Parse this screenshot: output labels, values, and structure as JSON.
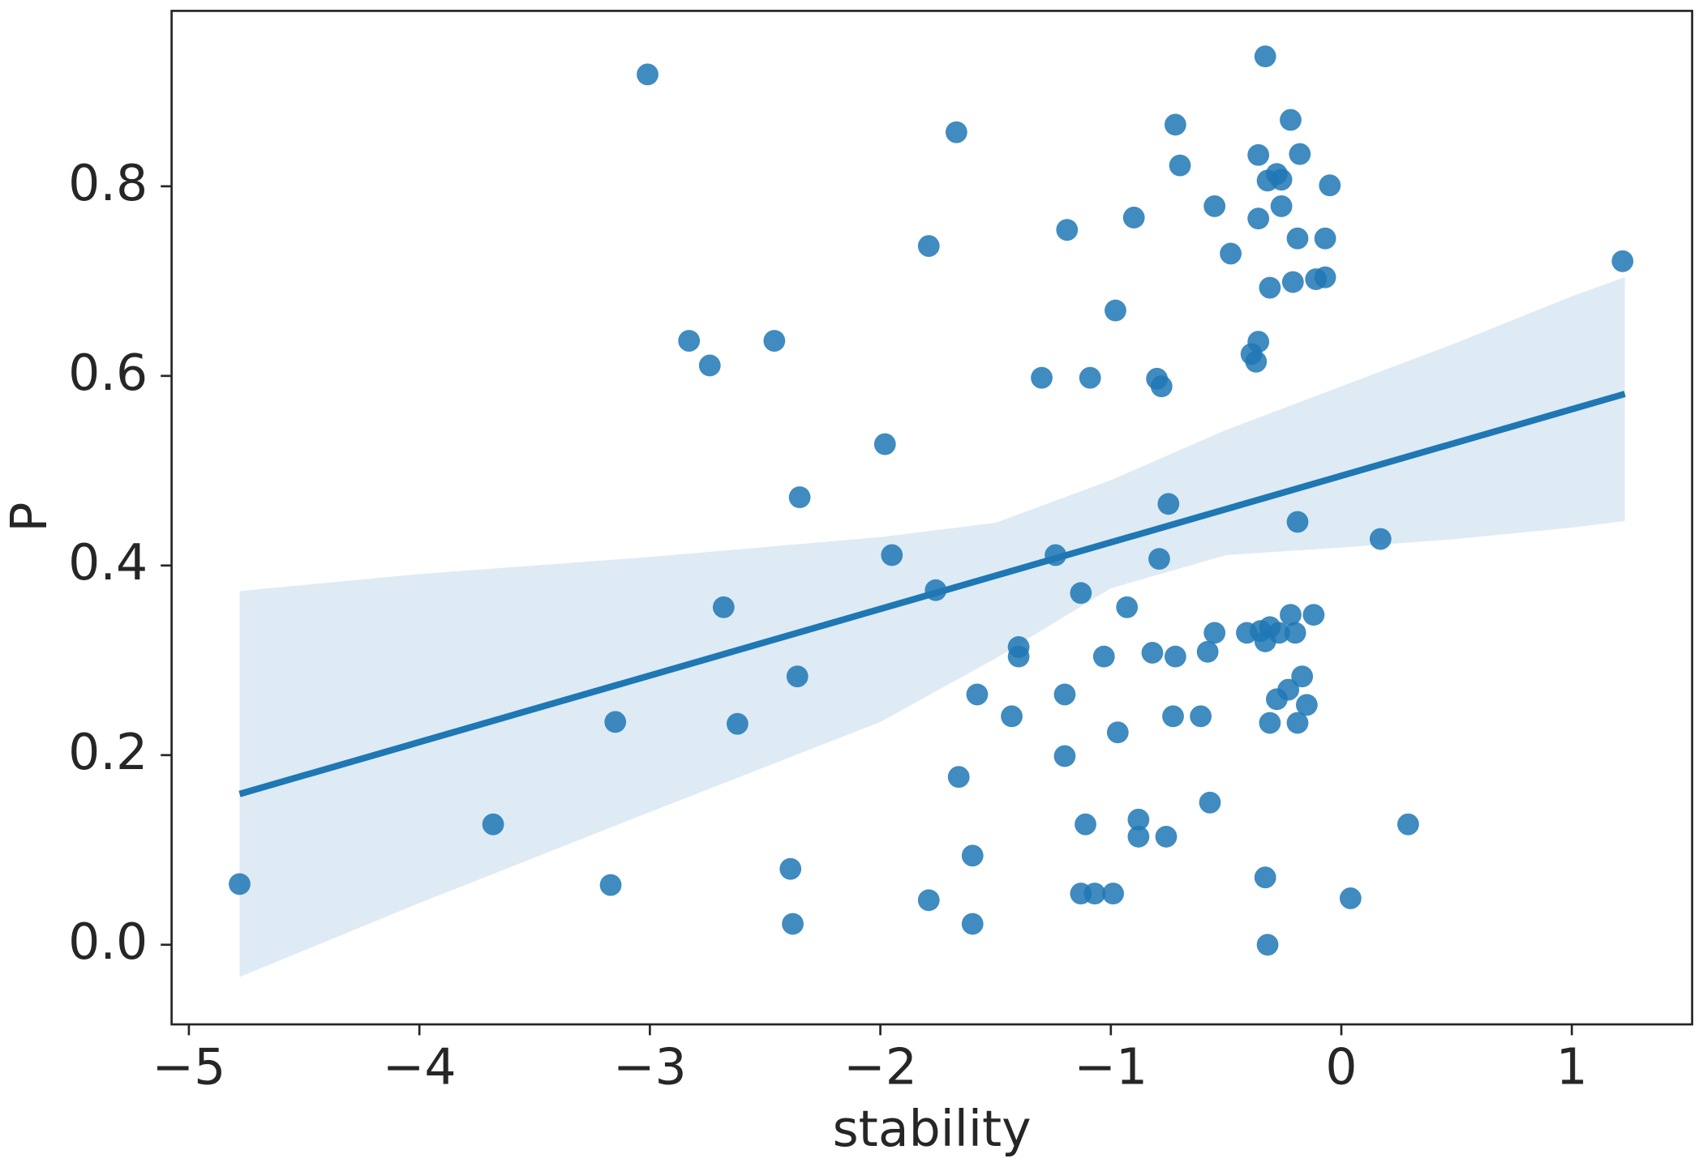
{
  "chart_data": {
    "type": "scatter",
    "x_label": "stability",
    "y_label": "P",
    "xlim": [
      -5.075,
      1.522
    ],
    "ylim": [
      -0.084,
      0.985
    ],
    "xticks": [
      {
        "value": -5,
        "label": "−5"
      },
      {
        "value": -4,
        "label": "−4"
      },
      {
        "value": -3,
        "label": "−3"
      },
      {
        "value": -2,
        "label": "−2"
      },
      {
        "value": -1,
        "label": "−1"
      },
      0,
      1
    ],
    "yticks": [
      {
        "value": 0,
        "label": "0.0"
      },
      {
        "value": 0.2,
        "label": "0.2"
      },
      {
        "value": 0.4,
        "label": "0.4"
      },
      {
        "value": 0.6,
        "label": "0.6"
      },
      {
        "value": 0.8,
        "label": "0.8"
      }
    ],
    "grid": false,
    "color": "#1f77b4",
    "x": [
      -4.78,
      -3.68,
      -3.17,
      -3.15,
      -3.01,
      -2.83,
      -2.74,
      -2.68,
      -2.62,
      -2.46,
      -2.38,
      -2.39,
      -2.36,
      -2.35,
      -1.98,
      -1.95,
      -1.79,
      -1.79,
      -1.76,
      -1.67,
      -1.66,
      -1.6,
      -1.6,
      -1.58,
      -1.43,
      -1.4,
      -1.4,
      -1.3,
      -1.24,
      -1.2,
      -1.2,
      -1.19,
      -1.13,
      -1.13,
      -1.11,
      -1.09,
      -1.07,
      -1.03,
      -0.99,
      -0.98,
      -0.97,
      -0.93,
      -0.9,
      -0.88,
      -0.88,
      -0.82,
      -0.8,
      -0.79,
      -0.78,
      -0.76,
      -0.75,
      -0.73,
      -0.72,
      -0.72,
      -0.7,
      -0.61,
      -0.58,
      -0.57,
      -0.55,
      -0.55,
      -0.48,
      -0.41,
      -0.39,
      -0.37,
      -0.36,
      -0.36,
      -0.36,
      -0.35,
      -0.33,
      -0.33,
      -0.33,
      -0.32,
      -0.32,
      -0.31,
      -0.31,
      -0.31,
      -0.28,
      -0.28,
      -0.27,
      -0.26,
      -0.26,
      -0.23,
      -0.22,
      -0.22,
      -0.21,
      -0.2,
      -0.19,
      -0.19,
      -0.19,
      -0.18,
      -0.17,
      -0.15,
      -0.12,
      -0.11,
      -0.07,
      -0.07,
      -0.05,
      0.04,
      0.17,
      0.29,
      1.22
    ],
    "values": [
      0.064,
      0.127,
      0.063,
      0.235,
      0.918,
      0.637,
      0.611,
      0.356,
      0.233,
      0.637,
      0.022,
      0.08,
      0.283,
      0.472,
      0.528,
      0.411,
      0.737,
      0.047,
      0.374,
      0.857,
      0.177,
      0.094,
      0.022,
      0.264,
      0.241,
      0.314,
      0.304,
      0.598,
      0.411,
      0.264,
      0.199,
      0.754,
      0.371,
      0.054,
      0.127,
      0.598,
      0.054,
      0.304,
      0.054,
      0.669,
      0.224,
      0.356,
      0.767,
      0.132,
      0.114,
      0.308,
      0.597,
      0.407,
      0.589,
      0.114,
      0.465,
      0.241,
      0.865,
      0.304,
      0.822,
      0.241,
      0.309,
      0.15,
      0.329,
      0.779,
      0.729,
      0.329,
      0.623,
      0.615,
      0.636,
      0.833,
      0.766,
      0.331,
      0.071,
      0.937,
      0.32,
      0.0,
      0.806,
      0.335,
      0.234,
      0.693,
      0.813,
      0.259,
      0.329,
      0.807,
      0.779,
      0.269,
      0.87,
      0.348,
      0.699,
      0.329,
      0.446,
      0.745,
      0.234,
      0.834,
      0.283,
      0.253,
      0.348,
      0.702,
      0.704,
      0.745,
      0.801,
      0.049,
      0.428,
      0.127,
      0.721
    ],
    "fit": {
      "x": [
        -4.78,
        1.23
      ],
      "values": [
        0.159,
        0.581
      ]
    },
    "band": {
      "x": [
        -4.78,
        -4,
        -3,
        -2,
        -1.5,
        -1,
        -0.5,
        0,
        0.5,
        1,
        1.23
      ],
      "upper": [
        0.373,
        0.391,
        0.409,
        0.43,
        0.445,
        0.49,
        0.543,
        0.589,
        0.635,
        0.684,
        0.704
      ],
      "lower": [
        -0.034,
        0.044,
        0.14,
        0.235,
        0.302,
        0.376,
        0.411,
        0.419,
        0.428,
        0.44,
        0.447
      ]
    }
  }
}
